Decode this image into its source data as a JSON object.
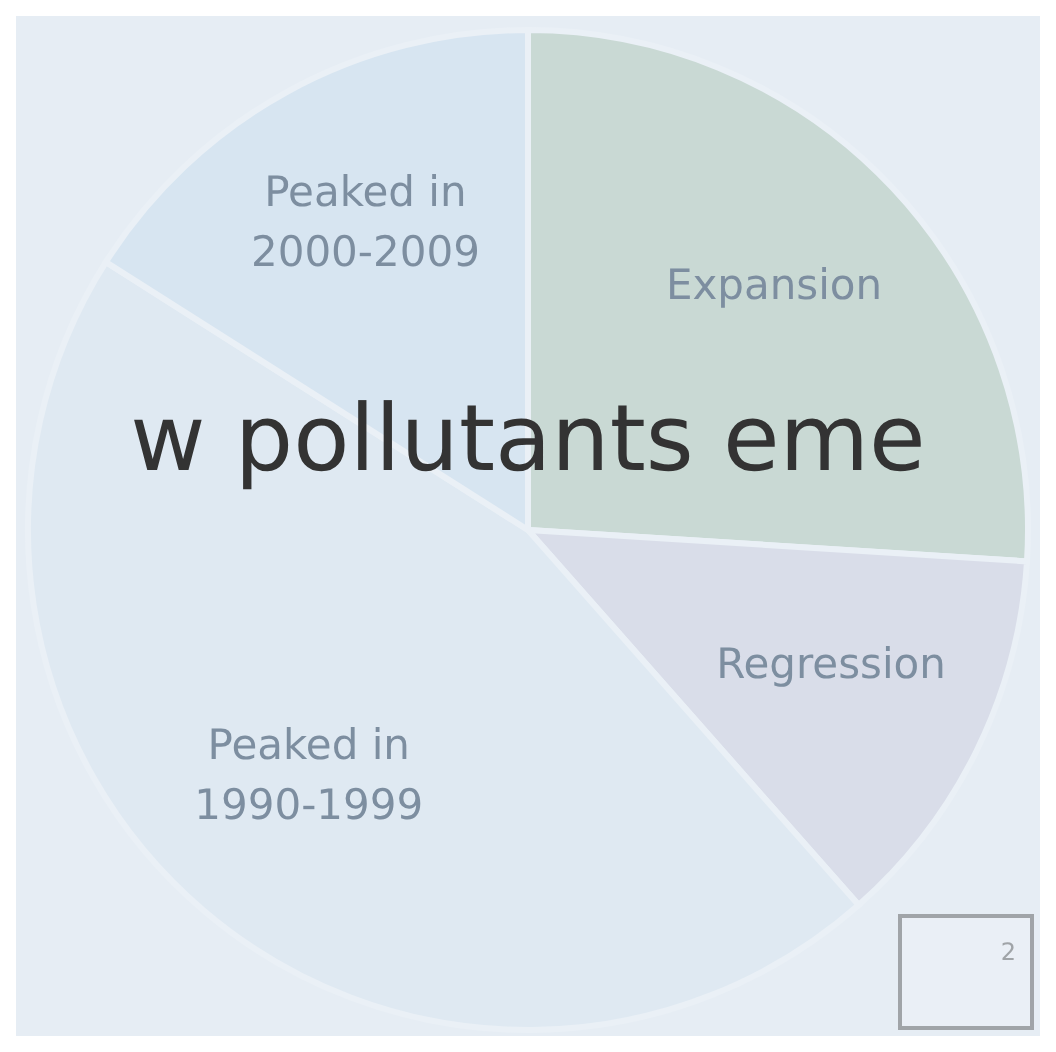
{
  "chart_data": {
    "type": "pie",
    "title": "w pollutants eme",
    "categories": [
      "Expansion",
      "Regression",
      "Peaked in 1990-1999",
      "Peaked in 2000-2009"
    ],
    "values": [
      26,
      12.5,
      45.5,
      16
    ],
    "colors": [
      "#c9d9d4",
      "#d9dde9",
      "#dfe9f2",
      "#d7e5f1"
    ],
    "annotations": [
      "2"
    ]
  }
}
